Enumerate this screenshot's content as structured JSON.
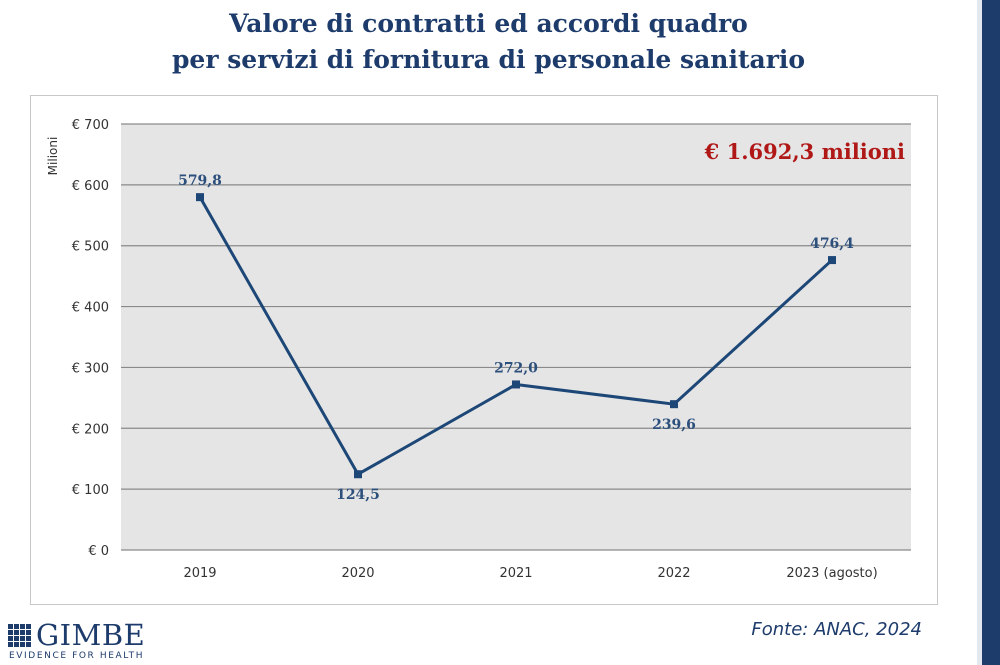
{
  "page": {
    "title_line1": "Valore di contratti ed accordi quadro",
    "title_line2": "per servizi di fornitura di personale sanitario",
    "source": "Fonte: ANAC, 2024",
    "logo": {
      "name": "GIMBE",
      "tagline": "EVIDENCE FOR HEALTH"
    }
  },
  "colors": {
    "title": "#1d3b6b",
    "line": "#1d4777",
    "label": "#2c4f7c",
    "total": "#b01818",
    "plot_bg": "#e5e5e5",
    "grid": "#8a8a8a"
  },
  "chart_data": {
    "type": "line",
    "categories": [
      "2019",
      "2020",
      "2021",
      "2022",
      "2023 (agosto)"
    ],
    "series": [
      {
        "values": [
          579.8,
          124.5,
          272.0,
          239.6,
          476.4
        ]
      }
    ],
    "data_labels": [
      "579,8",
      "124,5",
      "272,0",
      "239,6",
      "476,4"
    ],
    "ylabel": "Milioni",
    "ylim": [
      0,
      700
    ],
    "yticks": [
      0,
      100,
      200,
      300,
      400,
      500,
      600,
      700
    ],
    "ytick_labels": [
      "€ 0",
      "€ 100",
      "€ 200",
      "€ 300",
      "€ 400",
      "€ 500",
      "€ 600",
      "€ 700"
    ],
    "annotation": "€ 1.692,3 milioni",
    "grid": true,
    "legend": "none"
  }
}
